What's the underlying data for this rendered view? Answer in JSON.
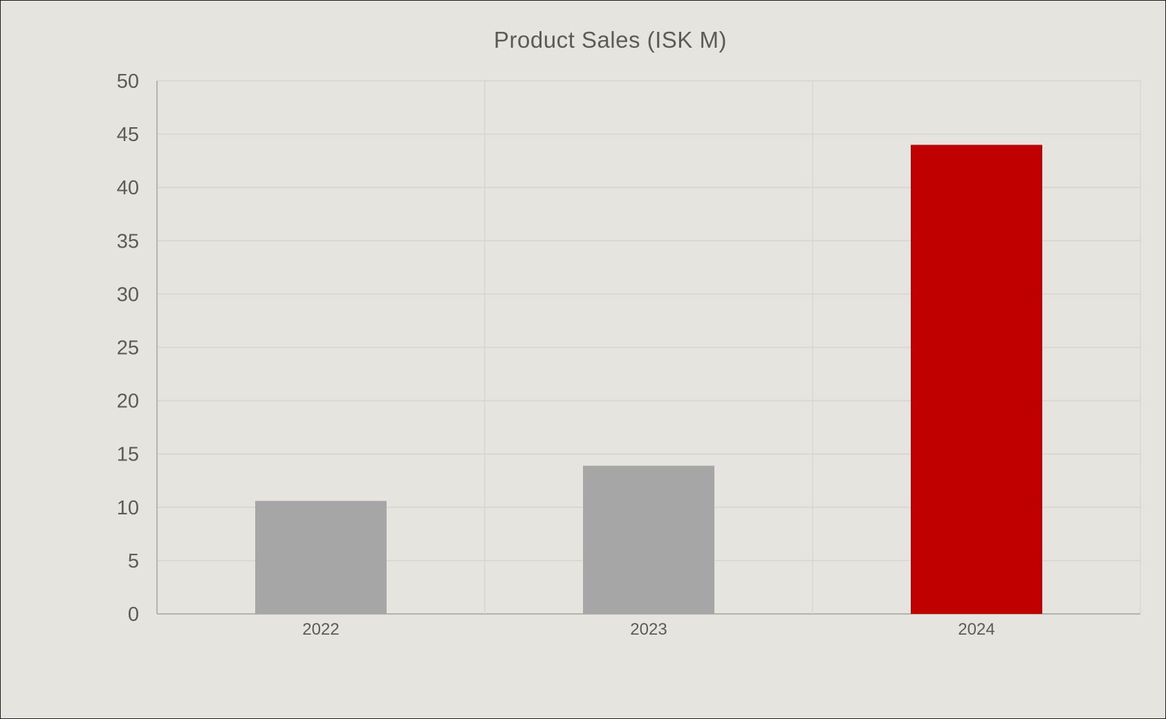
{
  "chart_data": {
    "type": "bar",
    "title": "Product Sales (ISK M)",
    "xlabel": "",
    "ylabel": "",
    "categories": [
      "2022",
      "2023",
      "2024"
    ],
    "values": [
      10.6,
      13.9,
      44
    ],
    "bar_colors": [
      "#a6a6a6",
      "#a6a6a6",
      "#c00000"
    ],
    "ylim": [
      0,
      50
    ],
    "yticks": [
      "0",
      "5",
      "10",
      "15",
      "20",
      "25",
      "30",
      "35",
      "40",
      "45",
      "50"
    ],
    "grid": true,
    "legend": "none"
  },
  "colors": {
    "background": "#e5e4de",
    "grid": "#d6d5d0",
    "axis": "#b5b4af",
    "text": "#5b5b57",
    "highlight": "#c00000",
    "default_bar": "#a6a6a6"
  }
}
